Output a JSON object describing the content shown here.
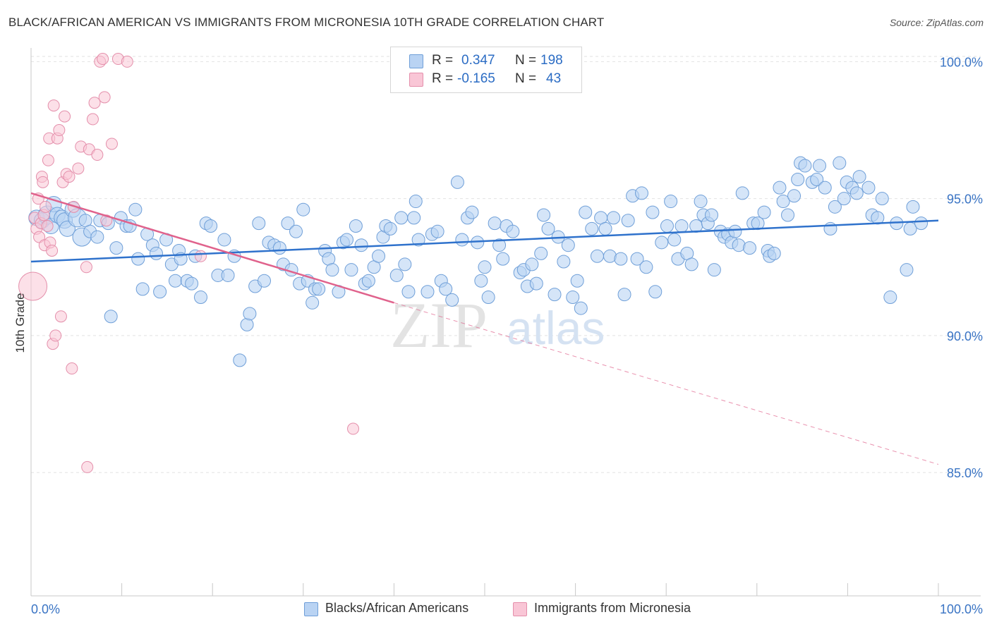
{
  "header": {
    "title": "BLACK/AFRICAN AMERICAN VS IMMIGRANTS FROM MICRONESIA 10TH GRADE CORRELATION CHART",
    "source": "Source: ZipAtlas.com"
  },
  "stats_box": {
    "rows": [
      {
        "r_label": "R =",
        "r_value": "0.347",
        "n_label": "N =",
        "n_value": "198"
      },
      {
        "r_label": "R =",
        "r_value": "-0.165",
        "n_label": "N =",
        "n_value": "43"
      }
    ]
  },
  "legend": {
    "items": [
      {
        "label": "Blacks/African Americans"
      },
      {
        "label": "Immigrants from Micronesia"
      }
    ]
  },
  "watermark": {
    "zip": "ZIP",
    "atlas": "atlas"
  },
  "colors": {
    "blue_fill": "#b9d3f3",
    "blue_stroke": "#6f9fd8",
    "blue_line": "#2f72cc",
    "pink_fill": "#f9c6d6",
    "pink_stroke": "#e48fab",
    "pink_line": "#e0628c",
    "axis_text": "#3a74c4"
  },
  "chart_data": {
    "type": "scatter",
    "title": "BLACK/AFRICAN AMERICAN VS IMMIGRANTS FROM MICRONESIA 10TH GRADE CORRELATION CHART",
    "xlabel": "",
    "ylabel": "10th Grade",
    "xlim": [
      0,
      100
    ],
    "ylim": [
      80.5,
      100.5
    ],
    "x_tick_labels": [
      "0.0%",
      "100.0%"
    ],
    "y_ticks": [
      85,
      90,
      95,
      100
    ],
    "y_tick_labels": [
      "85.0%",
      "90.0%",
      "95.0%",
      "100.0%"
    ],
    "grid": true,
    "legend_position": "bottom",
    "series": [
      {
        "name": "Blacks/African Americans",
        "color": "#6f9fd8",
        "r": 0.347,
        "n": 198,
        "trend": {
          "x": [
            0,
            100
          ],
          "y": [
            92.7,
            94.2
          ]
        },
        "points": [
          [
            0.6,
            94.3
          ],
          [
            1.2,
            94.2
          ],
          [
            1.8,
            94.4
          ],
          [
            2.2,
            94.0
          ],
          [
            2.5,
            94.8
          ],
          [
            2.9,
            94.4
          ],
          [
            3.4,
            94.3
          ],
          [
            3.7,
            94.2
          ],
          [
            4.0,
            93.9
          ],
          [
            4.6,
            94.6
          ],
          [
            5.1,
            94.3
          ],
          [
            5.6,
            93.6
          ],
          [
            6.0,
            94.2
          ],
          [
            6.5,
            93.8
          ],
          [
            7.3,
            93.6
          ],
          [
            7.6,
            94.2
          ],
          [
            8.5,
            94.1
          ],
          [
            8.8,
            90.7
          ],
          [
            9.4,
            93.2
          ],
          [
            9.9,
            94.3
          ],
          [
            10.5,
            94.0
          ],
          [
            10.9,
            94.0
          ],
          [
            11.5,
            94.6
          ],
          [
            11.8,
            92.8
          ],
          [
            12.3,
            91.7
          ],
          [
            12.8,
            93.7
          ],
          [
            13.4,
            93.3
          ],
          [
            13.8,
            93.0
          ],
          [
            14.2,
            91.6
          ],
          [
            14.9,
            93.5
          ],
          [
            15.5,
            92.6
          ],
          [
            15.9,
            92.0
          ],
          [
            16.3,
            93.1
          ],
          [
            16.5,
            92.8
          ],
          [
            17.2,
            92.0
          ],
          [
            17.7,
            91.9
          ],
          [
            18.1,
            92.9
          ],
          [
            18.7,
            91.4
          ],
          [
            19.3,
            94.1
          ],
          [
            19.8,
            94.0
          ],
          [
            20.6,
            92.2
          ],
          [
            21.3,
            93.5
          ],
          [
            21.7,
            92.2
          ],
          [
            22.4,
            92.9
          ],
          [
            23.0,
            89.1
          ],
          [
            23.8,
            90.4
          ],
          [
            24.1,
            90.8
          ],
          [
            24.7,
            91.8
          ],
          [
            25.1,
            94.1
          ],
          [
            25.7,
            92.0
          ],
          [
            26.2,
            93.4
          ],
          [
            26.8,
            93.3
          ],
          [
            27.4,
            93.2
          ],
          [
            27.8,
            92.6
          ],
          [
            28.3,
            94.1
          ],
          [
            28.7,
            92.4
          ],
          [
            29.2,
            93.8
          ],
          [
            29.6,
            91.9
          ],
          [
            30.0,
            94.6
          ],
          [
            30.5,
            92.0
          ],
          [
            31.0,
            91.2
          ],
          [
            31.3,
            91.7
          ],
          [
            31.7,
            91.7
          ],
          [
            32.4,
            93.1
          ],
          [
            32.8,
            92.8
          ],
          [
            33.2,
            92.4
          ],
          [
            33.9,
            91.6
          ],
          [
            34.4,
            93.4
          ],
          [
            34.8,
            93.5
          ],
          [
            35.3,
            92.4
          ],
          [
            35.8,
            94.0
          ],
          [
            36.4,
            93.3
          ],
          [
            36.8,
            91.9
          ],
          [
            37.2,
            92.0
          ],
          [
            37.8,
            92.5
          ],
          [
            38.3,
            92.9
          ],
          [
            38.8,
            93.6
          ],
          [
            39.1,
            94.0
          ],
          [
            39.6,
            93.9
          ],
          [
            40.3,
            92.2
          ],
          [
            40.8,
            94.3
          ],
          [
            41.2,
            92.6
          ],
          [
            41.6,
            91.6
          ],
          [
            42.2,
            94.3
          ],
          [
            42.4,
            94.9
          ],
          [
            42.7,
            93.5
          ],
          [
            43.7,
            91.6
          ],
          [
            44.2,
            93.7
          ],
          [
            44.8,
            93.8
          ],
          [
            45.2,
            92.0
          ],
          [
            45.7,
            91.7
          ],
          [
            46.4,
            91.3
          ],
          [
            47.0,
            95.6
          ],
          [
            47.5,
            93.5
          ],
          [
            48.1,
            94.3
          ],
          [
            48.6,
            94.5
          ],
          [
            49.2,
            93.4
          ],
          [
            49.6,
            92.0
          ],
          [
            50.0,
            92.5
          ],
          [
            50.4,
            91.4
          ],
          [
            51.1,
            94.1
          ],
          [
            51.6,
            93.3
          ],
          [
            52.0,
            92.8
          ],
          [
            52.4,
            94.0
          ],
          [
            53.1,
            93.8
          ],
          [
            53.9,
            92.3
          ],
          [
            54.3,
            92.4
          ],
          [
            54.7,
            91.8
          ],
          [
            55.2,
            92.6
          ],
          [
            55.7,
            91.9
          ],
          [
            56.2,
            93.0
          ],
          [
            56.5,
            94.4
          ],
          [
            57.0,
            93.9
          ],
          [
            57.7,
            91.5
          ],
          [
            58.1,
            93.6
          ],
          [
            58.7,
            92.7
          ],
          [
            59.2,
            93.3
          ],
          [
            59.7,
            91.4
          ],
          [
            60.2,
            92.0
          ],
          [
            60.6,
            91.0
          ],
          [
            61.1,
            94.5
          ],
          [
            61.8,
            93.9
          ],
          [
            62.4,
            92.9
          ],
          [
            62.8,
            94.3
          ],
          [
            63.3,
            93.9
          ],
          [
            63.8,
            92.9
          ],
          [
            64.2,
            94.3
          ],
          [
            65.0,
            92.8
          ],
          [
            65.4,
            91.5
          ],
          [
            65.8,
            94.2
          ],
          [
            66.3,
            95.1
          ],
          [
            66.8,
            92.8
          ],
          [
            67.3,
            95.2
          ],
          [
            67.8,
            92.5
          ],
          [
            68.5,
            94.5
          ],
          [
            68.8,
            91.6
          ],
          [
            69.5,
            93.4
          ],
          [
            70.1,
            94.0
          ],
          [
            70.5,
            94.9
          ],
          [
            70.9,
            93.5
          ],
          [
            71.3,
            92.8
          ],
          [
            71.7,
            94.0
          ],
          [
            72.3,
            93.0
          ],
          [
            72.8,
            92.6
          ],
          [
            73.3,
            94.0
          ],
          [
            73.8,
            94.9
          ],
          [
            74.1,
            94.4
          ],
          [
            74.6,
            94.1
          ],
          [
            75.0,
            94.4
          ],
          [
            75.3,
            92.4
          ],
          [
            76.0,
            93.8
          ],
          [
            76.4,
            93.6
          ],
          [
            76.8,
            93.7
          ],
          [
            77.2,
            93.4
          ],
          [
            77.6,
            93.8
          ],
          [
            78.0,
            93.3
          ],
          [
            78.4,
            95.2
          ],
          [
            79.2,
            93.2
          ],
          [
            79.6,
            94.1
          ],
          [
            80.1,
            94.1
          ],
          [
            80.8,
            94.5
          ],
          [
            81.2,
            93.1
          ],
          [
            81.4,
            92.9
          ],
          [
            81.9,
            93.0
          ],
          [
            82.5,
            95.4
          ],
          [
            82.9,
            94.9
          ],
          [
            83.4,
            94.4
          ],
          [
            84.1,
            95.1
          ],
          [
            84.5,
            95.7
          ],
          [
            84.8,
            96.3
          ],
          [
            85.3,
            96.2
          ],
          [
            86.1,
            95.6
          ],
          [
            86.6,
            95.7
          ],
          [
            86.9,
            96.2
          ],
          [
            87.5,
            95.4
          ],
          [
            88.1,
            93.9
          ],
          [
            88.6,
            94.7
          ],
          [
            89.1,
            96.3
          ],
          [
            89.6,
            95.0
          ],
          [
            89.9,
            95.6
          ],
          [
            90.5,
            95.4
          ],
          [
            91.0,
            95.2
          ],
          [
            91.3,
            95.8
          ],
          [
            92.3,
            95.4
          ],
          [
            92.7,
            94.4
          ],
          [
            93.3,
            94.3
          ],
          [
            93.8,
            95.0
          ],
          [
            94.7,
            91.4
          ],
          [
            95.4,
            94.1
          ],
          [
            96.5,
            92.4
          ],
          [
            97.2,
            94.7
          ],
          [
            96.9,
            93.9
          ],
          [
            98.1,
            94.1
          ]
        ]
      },
      {
        "name": "Immigrants from Micronesia",
        "color": "#e48fab",
        "r": -0.165,
        "n": 43,
        "trend": {
          "x": [
            0,
            40
          ],
          "y": [
            95.2,
            91.2
          ]
        },
        "trend_dashed": {
          "x": [
            40,
            100
          ],
          "y": [
            91.2,
            85.3
          ]
        },
        "points": [
          [
            0.2,
            91.8
          ],
          [
            0.4,
            94.3
          ],
          [
            0.6,
            93.9
          ],
          [
            0.8,
            95.0
          ],
          [
            0.9,
            93.6
          ],
          [
            1.1,
            94.1
          ],
          [
            1.2,
            95.8
          ],
          [
            1.3,
            95.6
          ],
          [
            1.4,
            94.4
          ],
          [
            1.5,
            93.3
          ],
          [
            1.6,
            94.7
          ],
          [
            1.8,
            94.0
          ],
          [
            1.9,
            96.4
          ],
          [
            2.0,
            97.2
          ],
          [
            2.1,
            93.4
          ],
          [
            2.3,
            93.1
          ],
          [
            2.4,
            89.7
          ],
          [
            2.5,
            98.4
          ],
          [
            2.7,
            90.0
          ],
          [
            2.9,
            97.2
          ],
          [
            3.1,
            97.5
          ],
          [
            3.3,
            90.7
          ],
          [
            3.5,
            95.6
          ],
          [
            3.7,
            98.0
          ],
          [
            3.9,
            95.9
          ],
          [
            4.2,
            95.8
          ],
          [
            4.5,
            88.8
          ],
          [
            4.7,
            94.7
          ],
          [
            5.2,
            96.1
          ],
          [
            5.5,
            96.9
          ],
          [
            6.1,
            92.5
          ],
          [
            6.4,
            96.8
          ],
          [
            6.8,
            97.9
          ],
          [
            7.0,
            98.5
          ],
          [
            7.3,
            96.6
          ],
          [
            7.6,
            100.0
          ],
          [
            7.9,
            100.1
          ],
          [
            8.1,
            98.7
          ],
          [
            8.3,
            94.2
          ],
          [
            8.9,
            97.0
          ],
          [
            9.6,
            100.1
          ],
          [
            10.6,
            100.0
          ],
          [
            18.7,
            92.9
          ],
          [
            35.5,
            86.6
          ],
          [
            6.2,
            85.2
          ]
        ]
      }
    ]
  }
}
